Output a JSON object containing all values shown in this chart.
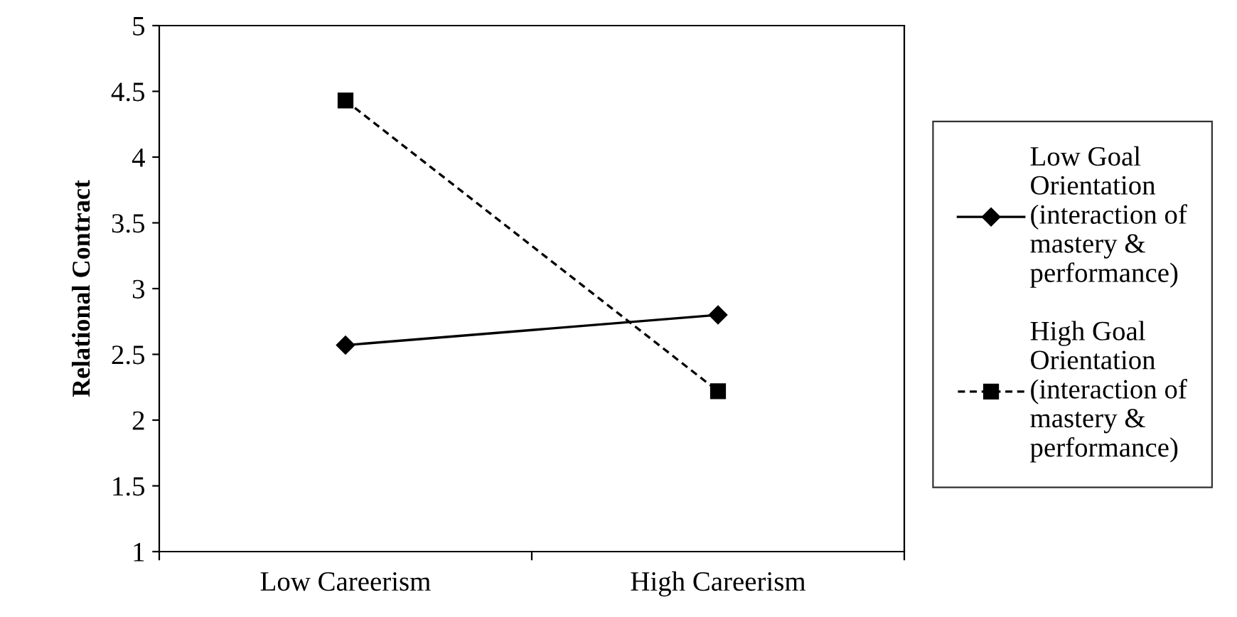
{
  "chart_data": {
    "type": "line",
    "ylabel": "Relational Contract",
    "categories": [
      "Low Careerism",
      "High Careerism"
    ],
    "series": [
      {
        "name": "Low Goal\nOrientation\n(interaction of\nmastery &\nperformance)",
        "color": "#000000",
        "values": [
          2.57,
          2.8
        ],
        "marker": "diamond",
        "line_style": "solid"
      },
      {
        "name": "High Goal\nOrientation\n(interaction of\nmastery &\nperformance)",
        "color": "#000000",
        "values": [
          4.43,
          2.22
        ],
        "marker": "square",
        "line_style": "dashed"
      }
    ],
    "ylim": [
      1,
      5
    ],
    "yticks": [
      1,
      1.5,
      2,
      2.5,
      3,
      3.5,
      4,
      4.5,
      5
    ],
    "grid": false,
    "legend": "right"
  }
}
